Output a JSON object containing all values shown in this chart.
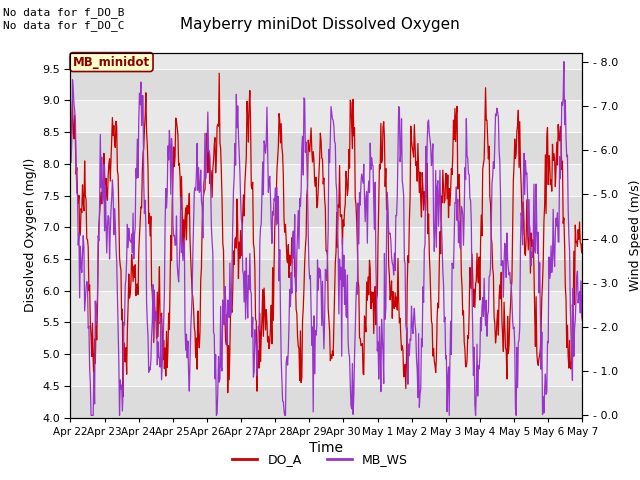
{
  "title": "Mayberry miniDot Dissolved Oxygen",
  "xlabel": "Time",
  "ylabel_left": "Dissolved Oxygen (mg/l)",
  "ylabel_right": "Wind Speed (m/s)",
  "ylim_left": [
    4.0,
    9.75
  ],
  "ylim_right": [
    -0.05,
    8.2
  ],
  "yticks_left": [
    4.0,
    4.5,
    5.0,
    5.5,
    6.0,
    6.5,
    7.0,
    7.5,
    8.0,
    8.5,
    9.0,
    9.5
  ],
  "yticks_right": [
    0.0,
    1.0,
    2.0,
    3.0,
    4.0,
    5.0,
    6.0,
    7.0,
    8.0
  ],
  "xtick_labels": [
    "Apr 22",
    "Apr 23",
    "Apr 24",
    "Apr 25",
    "Apr 26",
    "Apr 27",
    "Apr 28",
    "Apr 29",
    "Apr 30",
    "May 1",
    "May 2",
    "May 3",
    "May 4",
    "May 5",
    "May 6",
    "May 7"
  ],
  "do_color": "#cc0000",
  "ws_color": "#9933cc",
  "legend_entries": [
    "DO_A",
    "MB_WS"
  ],
  "annotation_text": "No data for f_DO_B\nNo data for f_DO_C",
  "box_label": "MB_minidot",
  "band_colors": [
    "#dcdcdc",
    "#e8e8e8"
  ],
  "grid_line_color": "#f0f0f0",
  "fig_bg": "#ffffff",
  "n_days": 15,
  "pts_per_day": 48
}
